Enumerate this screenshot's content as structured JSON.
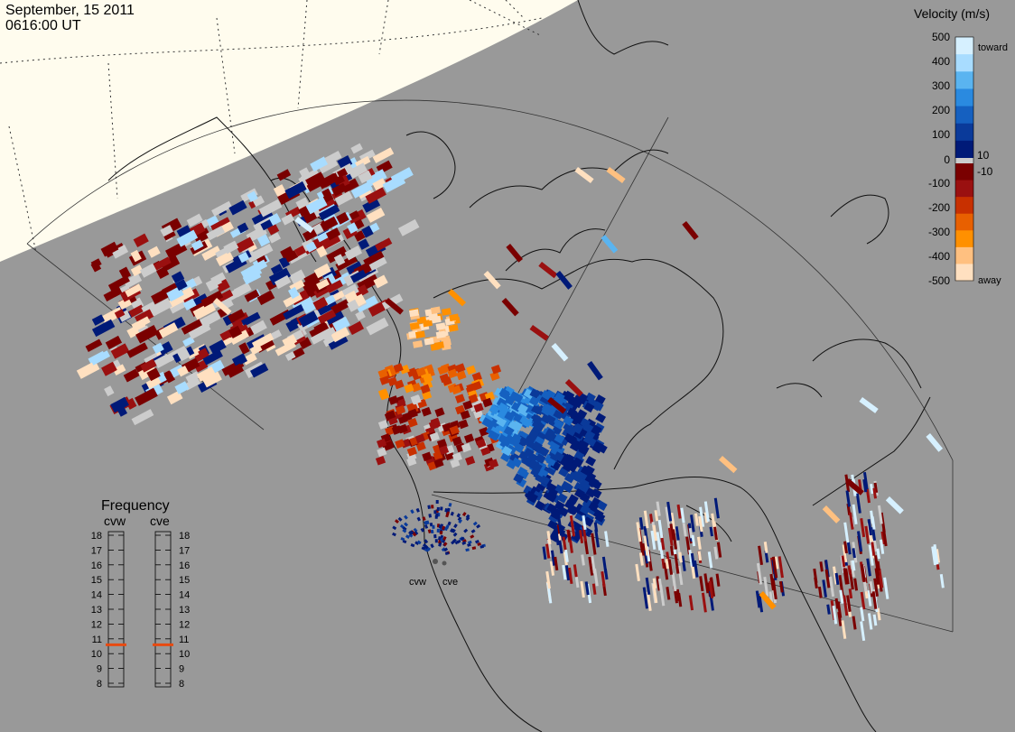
{
  "header": {
    "date": "September, 15 2011",
    "time": "0616:00 UT"
  },
  "velocity_scale": {
    "title": "Velocity (m/s)",
    "toward_label": "toward",
    "away_label": "away",
    "ticks": [
      "500",
      "400",
      "300",
      "200",
      "100",
      "10",
      "0",
      "-10",
      "-100",
      "-200",
      "-300",
      "-400",
      "-500"
    ],
    "colors_toward": [
      "#d6f0ff",
      "#a8dcff",
      "#5ab4f0",
      "#2a8ae0",
      "#1560c0",
      "#0a3a9a",
      "#001a78"
    ],
    "colors_away": [
      "#7a0000",
      "#9a1010",
      "#c83000",
      "#e86000",
      "#ff9000",
      "#ffc080",
      "#ffe0c0"
    ],
    "ground_scatter_color": "#cccccc"
  },
  "frequency_panel": {
    "title": "Frequency",
    "radars": [
      "cvw",
      "cve"
    ],
    "ticks": [
      "18",
      "17",
      "16",
      "15",
      "14",
      "13",
      "12",
      "11",
      "10",
      "9",
      "8"
    ],
    "cvw_mhz": 10.6,
    "cve_mhz": 10.6,
    "marker_color": "#e84a10"
  },
  "radar_sites": [
    "cvw",
    "cve"
  ]
}
